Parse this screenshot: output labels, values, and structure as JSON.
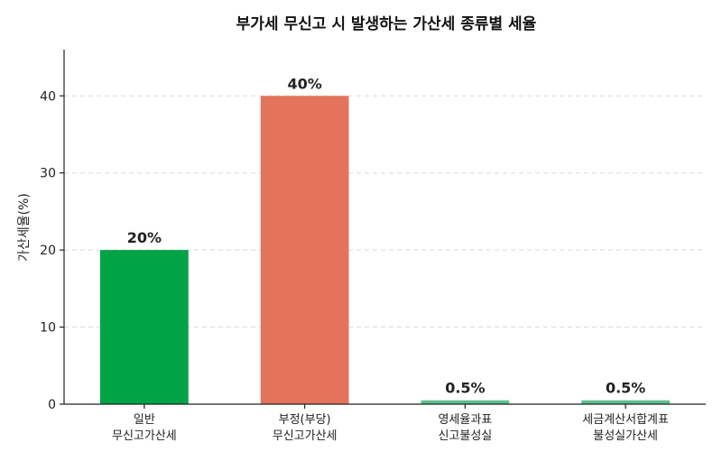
{
  "chart_data": {
    "type": "bar",
    "title": "부가세 무신고 시 발생하는 가산세 종류별 세율",
    "xlabel": "",
    "ylabel": "가산세율(%)",
    "ylim": [
      0,
      46
    ],
    "yticks": [
      0,
      10,
      20,
      30,
      40
    ],
    "grid": "y",
    "categories": [
      [
        "일반",
        "무신고가산세"
      ],
      [
        "부정(부당)",
        "무신고가산세"
      ],
      [
        "영세율과표",
        "신고불성실"
      ],
      [
        "세금계산서합계표",
        "불성실가산세"
      ]
    ],
    "values": [
      20,
      40,
      0.5,
      0.5
    ],
    "data_labels": [
      "20%",
      "40%",
      "0.5%",
      "0.5%"
    ],
    "colors": [
      "#00a346",
      "#e4735c",
      "#5cc08c",
      "#5cc08c"
    ]
  }
}
